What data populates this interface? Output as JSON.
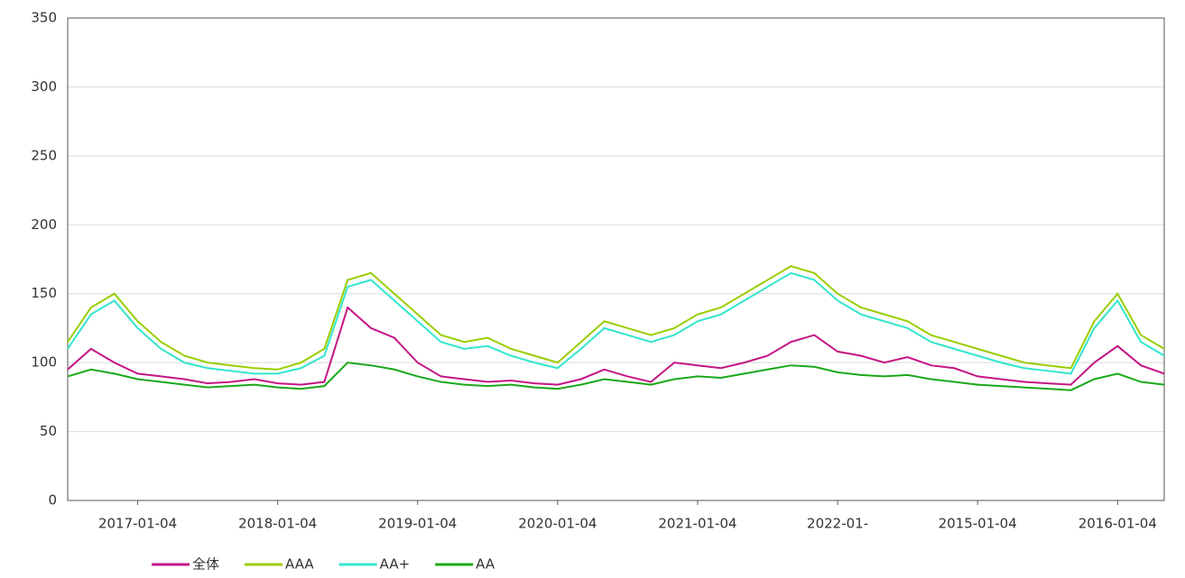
{
  "chart_data": {
    "type": "line",
    "categories": [
      null,
      null,
      null,
      "2017-01-04",
      null,
      null,
      null,
      null,
      null,
      "2018-01-04",
      null,
      null,
      null,
      null,
      null,
      "2019-01-04",
      null,
      null,
      null,
      null,
      null,
      "2020-01-04",
      null,
      null,
      null,
      null,
      null,
      "2021-01-04",
      null,
      null,
      null,
      null,
      null,
      "2022-01-",
      null,
      null,
      null,
      null,
      null,
      "2015-01-04",
      null,
      null,
      null,
      null,
      null,
      "2016-01-04",
      null,
      null
    ],
    "series": [
      {
        "name": "全体",
        "color": "#c41585",
        "values": [
          95,
          110,
          100,
          92,
          90,
          88,
          85,
          86,
          88,
          85,
          84,
          86,
          140,
          125,
          118,
          100,
          90,
          88,
          86,
          87,
          85,
          84,
          88,
          95,
          90,
          86,
          100,
          98,
          96,
          100,
          105,
          115,
          120,
          108,
          105,
          100,
          104,
          98,
          96,
          90,
          88,
          86,
          85,
          84,
          100,
          112,
          98,
          92
        ]
      },
      {
        "name": "AAA",
        "color": "#9acd00",
        "values": [
          115,
          140,
          150,
          130,
          115,
          105,
          100,
          98,
          96,
          95,
          100,
          110,
          160,
          165,
          150,
          135,
          120,
          115,
          118,
          110,
          105,
          100,
          115,
          130,
          125,
          120,
          125,
          135,
          140,
          150,
          160,
          170,
          165,
          150,
          140,
          135,
          130,
          120,
          115,
          110,
          105,
          100,
          98,
          96,
          130,
          150,
          120,
          110
        ]
      },
      {
        "name": "AA+",
        "color": "#33e6cc",
        "values": [
          110,
          135,
          145,
          125,
          110,
          100,
          96,
          94,
          92,
          92,
          96,
          105,
          155,
          160,
          145,
          130,
          115,
          110,
          112,
          105,
          100,
          96,
          110,
          125,
          120,
          115,
          120,
          130,
          135,
          145,
          155,
          165,
          160,
          145,
          135,
          130,
          125,
          115,
          110,
          105,
          100,
          96,
          94,
          92,
          125,
          145,
          115,
          105
        ]
      },
      {
        "name": "AA",
        "color": "#1aa81a",
        "values": [
          90,
          95,
          92,
          88,
          86,
          84,
          82,
          83,
          84,
          82,
          81,
          83,
          100,
          98,
          95,
          90,
          86,
          84,
          83,
          84,
          82,
          81,
          84,
          88,
          86,
          84,
          88,
          90,
          89,
          92,
          95,
          98,
          97,
          93,
          91,
          90,
          91,
          88,
          86,
          84,
          83,
          82,
          81,
          80,
          88,
          92,
          86,
          84
        ]
      }
    ],
    "ylim": [
      0,
      350
    ],
    "yticks": [
      0,
      50,
      100,
      150,
      200,
      250,
      300,
      350
    ],
    "grid": true
  }
}
